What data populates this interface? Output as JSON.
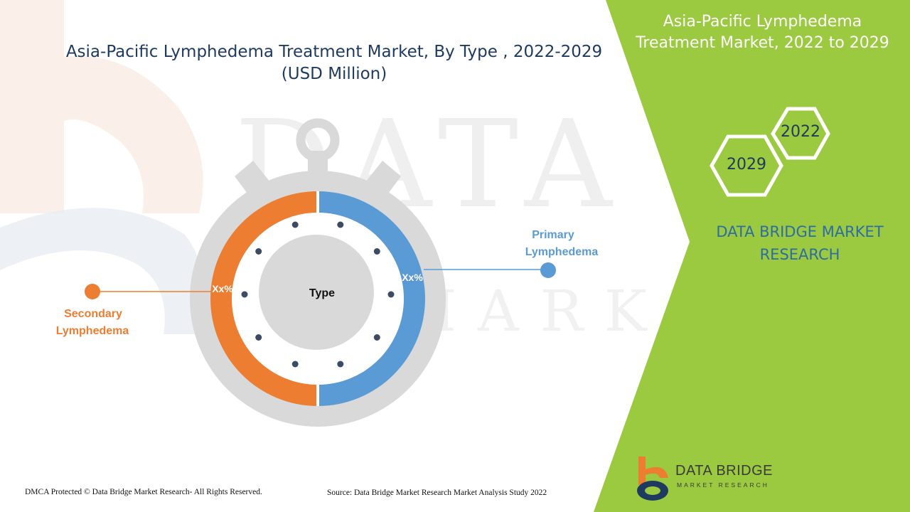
{
  "title": {
    "line1": "Asia-Pacific Lymphedema Treatment Market, By Type , 2022-2029",
    "line2": "(USD Million)"
  },
  "side_panel": {
    "title_line1": "Asia-Pacific Lymphedema",
    "title_line2": "Treatment Market, 2022 to 2029",
    "years": [
      "2022",
      "2029"
    ],
    "brand_line1": "DATA BRIDGE MARKET",
    "brand_line2": "RESEARCH"
  },
  "watermark": {
    "line1": "DATA BRIDGE",
    "line2": "MARKET RESEARCH"
  },
  "footer": {
    "left": "DMCA Protected © Data Bridge Market Research- All Rights Reserved.",
    "right": "Source: Data Bridge Market Research Market Analysis Study 2022"
  },
  "logo": {
    "name": "DATA BRIDGE",
    "sub": "MARKET RESEARCH"
  },
  "colors": {
    "primary": "#5b9bd5",
    "secondary": "#ed7d31",
    "green": "#9bc93f",
    "gray": "#d9d9d9",
    "navy": "#1f3a5f"
  },
  "chart_data": {
    "type": "pie",
    "center_label": "Type",
    "segments": [
      {
        "name": "Primary Lymphedema",
        "name_line1": "Primary",
        "name_line2": "Lymphedema",
        "label": "Xx%",
        "share": 0.5,
        "color": "#5b9bd5",
        "side": "right"
      },
      {
        "name": "Secondary Lymphedema",
        "name_line1": "Secondary",
        "name_line2": "Lymphedema",
        "label": "Xx%",
        "share": 0.5,
        "color": "#ed7d31",
        "side": "left"
      }
    ]
  }
}
